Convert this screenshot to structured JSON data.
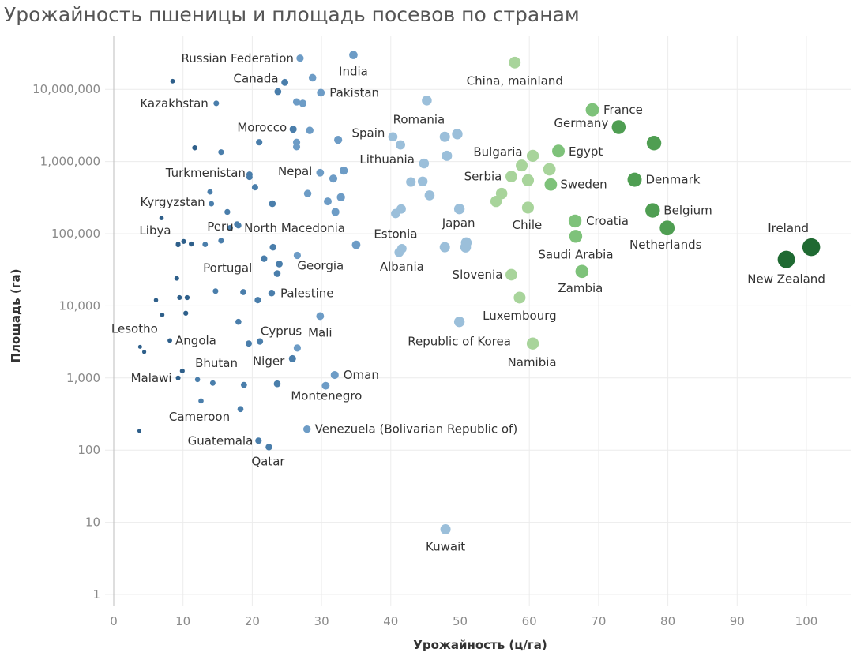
{
  "chart_data": {
    "type": "scatter",
    "title": "Урожайность пшеницы и площадь посевов по странам",
    "xlabel": "Урожайность (ц/га)",
    "ylabel": "Площадь (га)",
    "xlim": [
      0,
      107
    ],
    "ylim": [
      1,
      60000000
    ],
    "y_scale": "log",
    "grid": true,
    "x_ticks": [
      "0",
      "10",
      "20",
      "30",
      "40",
      "50",
      "60",
      "70",
      "80",
      "90",
      "100"
    ],
    "y_ticks": [
      "1",
      "10",
      "100",
      "1,000",
      "10,000",
      "100,000",
      "1,000,000",
      "10,000,000"
    ],
    "color_scale": [
      "#2e5f8a",
      "#4a7eab",
      "#6d9cc6",
      "#9bbfda",
      "#a8d49b",
      "#7ec27a",
      "#4f9e52",
      "#1f6a32"
    ],
    "labeled_points": [
      {
        "name": "Russian Federation",
        "x": 26.9,
        "y": 27000000
      },
      {
        "name": "India",
        "x": 34.6,
        "y": 30000000
      },
      {
        "name": "Canada",
        "x": 24.7,
        "y": 12500000
      },
      {
        "name": "Pakistan",
        "x": 29.9,
        "y": 9000000
      },
      {
        "name": "Kazakhstan",
        "x": 14.8,
        "y": 6400000
      },
      {
        "name": "China, mainland",
        "x": 57.9,
        "y": 23500000
      },
      {
        "name": "France",
        "x": 69.1,
        "y": 5200000
      },
      {
        "name": "Germany",
        "x": 72.9,
        "y": 3000000
      },
      {
        "name": "Romania",
        "x": 45.2,
        "y": 7000000
      },
      {
        "name": "Morocco",
        "x": 25.9,
        "y": 2800000
      },
      {
        "name": "Spain",
        "x": 40.3,
        "y": 2200000
      },
      {
        "name": "Bulgaria",
        "x": 60.5,
        "y": 1200000
      },
      {
        "name": "Egypt",
        "x": 64.2,
        "y": 1400000
      },
      {
        "name": "Turkmenistan",
        "x": 19.6,
        "y": 660000
      },
      {
        "name": "Nepal",
        "x": 29.8,
        "y": 700000
      },
      {
        "name": "Lithuania",
        "x": 44.8,
        "y": 940000
      },
      {
        "name": "Serbia",
        "x": 57.4,
        "y": 620000
      },
      {
        "name": "Sweden",
        "x": 63.1,
        "y": 480000
      },
      {
        "name": "Denmark",
        "x": 75.2,
        "y": 560000
      },
      {
        "name": "Kyrgyzstan",
        "x": 14.1,
        "y": 260000
      },
      {
        "name": "Belgium",
        "x": 77.8,
        "y": 210000
      },
      {
        "name": "Libya",
        "x": 9.3,
        "y": 72000
      },
      {
        "name": "Peru",
        "x": 15.5,
        "y": 80000
      },
      {
        "name": "North Macedonia",
        "x": 17.8,
        "y": 135000
      },
      {
        "name": "Estonia",
        "x": 40.7,
        "y": 190000
      },
      {
        "name": "Japan",
        "x": 49.9,
        "y": 220000
      },
      {
        "name": "Chile",
        "x": 59.8,
        "y": 230000
      },
      {
        "name": "Croatia",
        "x": 66.6,
        "y": 150000
      },
      {
        "name": "Netherlands",
        "x": 79.9,
        "y": 120000
      },
      {
        "name": "Ireland",
        "x": 100.7,
        "y": 65000
      },
      {
        "name": "Saudi Arabia",
        "x": 66.7,
        "y": 92000
      },
      {
        "name": "New Zealand",
        "x": 97.1,
        "y": 44000
      },
      {
        "name": "Portugal",
        "x": 21.7,
        "y": 45000
      },
      {
        "name": "Georgia",
        "x": 26.5,
        "y": 50000
      },
      {
        "name": "Albania",
        "x": 41.6,
        "y": 62000
      },
      {
        "name": "Slovenia",
        "x": 57.4,
        "y": 27000
      },
      {
        "name": "Zambia",
        "x": 67.6,
        "y": 30000
      },
      {
        "name": "Palestine",
        "x": 22.8,
        "y": 15000
      },
      {
        "name": "Cyprus",
        "x": 18.0,
        "y": 6000
      },
      {
        "name": "Mali",
        "x": 29.8,
        "y": 7200
      },
      {
        "name": "Luxembourg",
        "x": 58.6,
        "y": 13000
      },
      {
        "name": "Lesotho",
        "x": 3.8,
        "y": 2700
      },
      {
        "name": "Angola",
        "x": 8.1,
        "y": 3300
      },
      {
        "name": "Republic of Korea",
        "x": 49.9,
        "y": 6000
      },
      {
        "name": "Namibia",
        "x": 60.5,
        "y": 3000
      },
      {
        "name": "Niger",
        "x": 25.8,
        "y": 1850
      },
      {
        "name": "Bhutan",
        "x": 12.1,
        "y": 950
      },
      {
        "name": "Malawi",
        "x": 9.3,
        "y": 1000
      },
      {
        "name": "Oman",
        "x": 31.9,
        "y": 1100
      },
      {
        "name": "Montenegro",
        "x": 30.6,
        "y": 780
      },
      {
        "name": "Cameroon",
        "x": 12.6,
        "y": 480
      },
      {
        "name": "Guatemala",
        "x": 20.9,
        "y": 135
      },
      {
        "name": "Venezuela (Bolivarian Republic of)",
        "x": 27.9,
        "y": 195
      },
      {
        "name": "Qatar",
        "x": 22.4,
        "y": 110
      },
      {
        "name": "Kuwait",
        "x": 47.9,
        "y": 8
      }
    ],
    "unlabeled_points": [
      {
        "x": 8.5,
        "y": 13000000
      },
      {
        "x": 28.7,
        "y": 14500000
      },
      {
        "x": 23.7,
        "y": 9300000
      },
      {
        "x": 26.4,
        "y": 6700000
      },
      {
        "x": 27.3,
        "y": 6400000
      },
      {
        "x": 28.3,
        "y": 2700000
      },
      {
        "x": 21.0,
        "y": 1850000
      },
      {
        "x": 26.4,
        "y": 1850000
      },
      {
        "x": 26.4,
        "y": 1600000
      },
      {
        "x": 11.7,
        "y": 1550000
      },
      {
        "x": 15.5,
        "y": 1350000
      },
      {
        "x": 19.6,
        "y": 610000
      },
      {
        "x": 20.4,
        "y": 440000
      },
      {
        "x": 13.9,
        "y": 380000
      },
      {
        "x": 22.9,
        "y": 260000
      },
      {
        "x": 16.4,
        "y": 200000
      },
      {
        "x": 6.9,
        "y": 165000
      },
      {
        "x": 18.0,
        "y": 130000
      },
      {
        "x": 16.8,
        "y": 120000
      },
      {
        "x": 9.3,
        "y": 70000
      },
      {
        "x": 10.1,
        "y": 78000
      },
      {
        "x": 11.2,
        "y": 72000
      },
      {
        "x": 13.2,
        "y": 71000
      },
      {
        "x": 23.0,
        "y": 65000
      },
      {
        "x": 23.9,
        "y": 38000
      },
      {
        "x": 23.6,
        "y": 28000
      },
      {
        "x": 9.1,
        "y": 24000
      },
      {
        "x": 14.7,
        "y": 16000
      },
      {
        "x": 18.7,
        "y": 15500
      },
      {
        "x": 20.8,
        "y": 12000
      },
      {
        "x": 6.1,
        "y": 12000
      },
      {
        "x": 9.5,
        "y": 13000
      },
      {
        "x": 10.6,
        "y": 13000
      },
      {
        "x": 7.0,
        "y": 7500
      },
      {
        "x": 10.4,
        "y": 7900
      },
      {
        "x": 19.5,
        "y": 3000
      },
      {
        "x": 21.1,
        "y": 3200
      },
      {
        "x": 26.5,
        "y": 2600
      },
      {
        "x": 4.4,
        "y": 2300
      },
      {
        "x": 9.9,
        "y": 1250
      },
      {
        "x": 14.3,
        "y": 850
      },
      {
        "x": 18.8,
        "y": 800
      },
      {
        "x": 23.6,
        "y": 830
      },
      {
        "x": 18.3,
        "y": 370
      },
      {
        "x": 3.7,
        "y": 185
      },
      {
        "x": 32.4,
        "y": 2000000
      },
      {
        "x": 33.2,
        "y": 750000
      },
      {
        "x": 31.7,
        "y": 580000
      },
      {
        "x": 28.0,
        "y": 360000
      },
      {
        "x": 30.9,
        "y": 280000
      },
      {
        "x": 32.8,
        "y": 320000
      },
      {
        "x": 32.0,
        "y": 200000
      },
      {
        "x": 35.0,
        "y": 70000
      },
      {
        "x": 41.4,
        "y": 1700000
      },
      {
        "x": 47.8,
        "y": 2200000
      },
      {
        "x": 49.6,
        "y": 2400000
      },
      {
        "x": 48.1,
        "y": 1200000
      },
      {
        "x": 42.9,
        "y": 520000
      },
      {
        "x": 44.6,
        "y": 530000
      },
      {
        "x": 45.6,
        "y": 340000
      },
      {
        "x": 41.5,
        "y": 220000
      },
      {
        "x": 41.2,
        "y": 55000
      },
      {
        "x": 47.8,
        "y": 65000
      },
      {
        "x": 50.8,
        "y": 65000
      },
      {
        "x": 50.9,
        "y": 75000
      },
      {
        "x": 56.0,
        "y": 360000
      },
      {
        "x": 55.2,
        "y": 280000
      },
      {
        "x": 58.9,
        "y": 880000
      },
      {
        "x": 59.8,
        "y": 550000
      },
      {
        "x": 62.9,
        "y": 780000
      },
      {
        "x": 78.0,
        "y": 1800000
      }
    ]
  }
}
